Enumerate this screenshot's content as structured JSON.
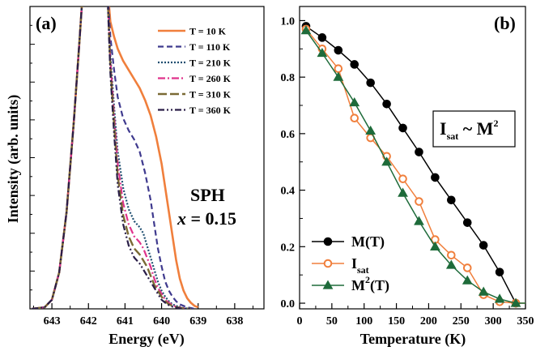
{
  "chart_data": [
    {
      "type": "line",
      "panel_label": "(a)",
      "xlabel": "Energy (eV)",
      "ylabel": "Intensity (arb. units)",
      "xlim": [
        643.6,
        637.2
      ],
      "x_reversed": true,
      "x_ticks": [
        643,
        642,
        641,
        640,
        639,
        638
      ],
      "y_tick_labels": false,
      "annotation_line1": "SPH",
      "annotation_x": "x",
      "annotation_rest": " = 0.15",
      "series": [
        {
          "name": "T = 10 K",
          "color": "#F07F3C",
          "dash": "",
          "width": 2.6,
          "x": [
            643.55,
            643.2,
            643.0,
            642.8,
            642.6,
            642.4,
            642.25,
            642.15,
            642.05,
            641.5,
            641.45,
            641.4,
            641.3,
            641.2,
            641.05,
            640.9,
            640.75,
            640.6,
            640.45,
            640.3,
            640.15,
            640.0,
            639.9,
            639.8,
            639.7,
            639.6,
            639.5,
            639.4,
            639.3,
            639.2,
            639.1,
            639.0
          ],
          "y": [
            0.0,
            0.005,
            0.03,
            0.12,
            0.32,
            0.62,
            0.88,
            1.06,
            1.12,
            1.12,
            1.02,
            0.95,
            0.9,
            0.86,
            0.82,
            0.79,
            0.76,
            0.73,
            0.69,
            0.64,
            0.57,
            0.48,
            0.4,
            0.32,
            0.24,
            0.16,
            0.1,
            0.06,
            0.035,
            0.02,
            0.01,
            0.005
          ]
        },
        {
          "name": "T = 110 K",
          "color": "#3F3A8E",
          "dash": "7,4",
          "width": 2.2,
          "x": [
            643.55,
            643.2,
            643.0,
            642.8,
            642.6,
            642.4,
            642.25,
            642.15,
            642.05,
            641.5,
            641.45,
            641.4,
            641.3,
            641.2,
            641.05,
            640.9,
            640.75,
            640.6,
            640.45,
            640.3,
            640.2,
            640.1,
            640.0,
            639.9,
            639.8,
            639.7,
            639.6,
            639.5,
            639.4,
            639.3,
            639.2,
            639.1
          ],
          "y": [
            0.0,
            0.005,
            0.03,
            0.12,
            0.32,
            0.62,
            0.88,
            1.06,
            1.12,
            1.12,
            1.0,
            0.9,
            0.79,
            0.7,
            0.63,
            0.59,
            0.56,
            0.52,
            0.45,
            0.36,
            0.28,
            0.2,
            0.14,
            0.09,
            0.06,
            0.04,
            0.025,
            0.015,
            0.01,
            0.005,
            0.003,
            0.0
          ]
        },
        {
          "name": "T = 210 K",
          "color": "#1E4E70",
          "dash": "2,2",
          "width": 2.2,
          "x": [
            643.55,
            643.2,
            643.0,
            642.8,
            642.6,
            642.4,
            642.25,
            642.15,
            642.05,
            641.5,
            641.45,
            641.4,
            641.3,
            641.2,
            641.05,
            640.9,
            640.75,
            640.6,
            640.5,
            640.4,
            640.3,
            640.2,
            640.1,
            640.0,
            639.9,
            639.8,
            639.7,
            639.6,
            639.5,
            639.4,
            639.3,
            639.2
          ],
          "y": [
            0.0,
            0.005,
            0.03,
            0.12,
            0.32,
            0.62,
            0.88,
            1.06,
            1.12,
            1.12,
            0.97,
            0.84,
            0.67,
            0.52,
            0.4,
            0.33,
            0.29,
            0.27,
            0.25,
            0.21,
            0.17,
            0.13,
            0.09,
            0.06,
            0.04,
            0.025,
            0.015,
            0.01,
            0.005,
            0.003,
            0.001,
            0.0
          ]
        },
        {
          "name": "T = 260 K",
          "color": "#E0338C",
          "dash": "9,3,2,3",
          "width": 2.2,
          "x": [
            643.55,
            643.2,
            643.0,
            642.8,
            642.6,
            642.4,
            642.25,
            642.15,
            642.05,
            641.5,
            641.45,
            641.4,
            641.3,
            641.2,
            641.05,
            640.9,
            640.75,
            640.6,
            640.5,
            640.4,
            640.3,
            640.2,
            640.1,
            640.0,
            639.9,
            639.8,
            639.7,
            639.6,
            639.5,
            639.4,
            639.3,
            639.2
          ],
          "y": [
            0.0,
            0.005,
            0.03,
            0.12,
            0.32,
            0.62,
            0.88,
            1.06,
            1.12,
            1.12,
            0.96,
            0.82,
            0.64,
            0.48,
            0.35,
            0.28,
            0.24,
            0.22,
            0.2,
            0.17,
            0.14,
            0.1,
            0.07,
            0.05,
            0.03,
            0.02,
            0.012,
            0.007,
            0.004,
            0.002,
            0.001,
            0.0
          ]
        },
        {
          "name": "T = 310 K",
          "color": "#7A6A35",
          "dash": "11,4",
          "width": 2.4,
          "x": [
            643.55,
            643.2,
            643.0,
            642.8,
            642.6,
            642.4,
            642.25,
            642.15,
            642.05,
            641.5,
            641.45,
            641.4,
            641.3,
            641.2,
            641.05,
            640.9,
            640.75,
            640.6,
            640.5,
            640.4,
            640.3,
            640.2,
            640.1,
            640.0,
            639.9,
            639.8,
            639.7,
            639.6,
            639.5,
            639.4,
            639.3,
            639.2
          ],
          "y": [
            0.0,
            0.005,
            0.03,
            0.12,
            0.32,
            0.62,
            0.88,
            1.06,
            1.12,
            1.12,
            0.95,
            0.8,
            0.61,
            0.44,
            0.31,
            0.24,
            0.2,
            0.18,
            0.16,
            0.14,
            0.11,
            0.08,
            0.06,
            0.04,
            0.025,
            0.015,
            0.01,
            0.006,
            0.003,
            0.002,
            0.001,
            0.0
          ]
        },
        {
          "name": "T = 360 K",
          "color": "#2A1E48",
          "dash": "8,3,2,3,2,3",
          "width": 2.2,
          "x": [
            643.55,
            643.2,
            643.0,
            642.8,
            642.6,
            642.4,
            642.25,
            642.15,
            642.05,
            641.5,
            641.45,
            641.4,
            641.3,
            641.2,
            641.05,
            640.9,
            640.75,
            640.6,
            640.5,
            640.4,
            640.3,
            640.2,
            640.1,
            640.0,
            639.9,
            639.8,
            639.7,
            639.6,
            639.5,
            639.4,
            639.3,
            639.2
          ],
          "y": [
            0.0,
            0.005,
            0.03,
            0.12,
            0.32,
            0.62,
            0.88,
            1.06,
            1.12,
            1.12,
            0.94,
            0.78,
            0.58,
            0.41,
            0.28,
            0.21,
            0.17,
            0.15,
            0.13,
            0.11,
            0.09,
            0.07,
            0.05,
            0.03,
            0.02,
            0.012,
            0.007,
            0.004,
            0.002,
            0.001,
            0.0,
            0.0
          ]
        }
      ]
    },
    {
      "type": "line",
      "panel_label": "(b)",
      "xlabel": "Temperature (K)",
      "ylabel": "",
      "xlim": [
        0,
        350
      ],
      "ylim": [
        -0.02,
        1.05
      ],
      "x_ticks": [
        0,
        50,
        100,
        150,
        200,
        250,
        300,
        350
      ],
      "y_ticks": [
        0.0,
        0.2,
        0.4,
        0.6,
        0.8,
        1.0
      ],
      "y_tick_labels_text": [
        "0.0",
        "0.2",
        "0.4",
        "0.6",
        "0.8",
        "1.0"
      ],
      "annotation": {
        "base": "I",
        "sub": "sat",
        "mid": " ~ M",
        "sup": "2"
      },
      "series": [
        {
          "name": "M(T)",
          "legend_base": "M(T)",
          "legend_sub": "",
          "legend_sup": "",
          "legend_tail": "",
          "color": "#000000",
          "marker": "circle-filled",
          "x": [
            10,
            35,
            60,
            85,
            110,
            135,
            160,
            185,
            210,
            235,
            260,
            285,
            310,
            335
          ],
          "y": [
            0.98,
            0.94,
            0.895,
            0.845,
            0.78,
            0.705,
            0.62,
            0.535,
            0.445,
            0.365,
            0.285,
            0.205,
            0.11,
            0.0
          ]
        },
        {
          "name": "Isat",
          "legend_base": "I",
          "legend_sub": "sat",
          "legend_sup": "",
          "legend_tail": "",
          "color": "#F07F3C",
          "marker": "circle-open",
          "x": [
            10,
            35,
            60,
            85,
            110,
            135,
            160,
            185,
            210,
            235,
            260,
            285,
            310,
            335,
            350
          ],
          "y": [
            0.97,
            0.9,
            0.83,
            0.655,
            0.585,
            0.52,
            0.44,
            0.36,
            0.225,
            0.17,
            0.125,
            0.03,
            0.005,
            0.0,
            0.0
          ]
        },
        {
          "name": "M2(T)",
          "legend_base": "M",
          "legend_sub": "",
          "legend_sup": "2",
          "legend_tail": "(T)",
          "color": "#1E6B3A",
          "marker": "triangle-filled",
          "x": [
            10,
            35,
            60,
            85,
            110,
            135,
            160,
            185,
            210,
            235,
            260,
            285,
            310,
            335,
            350
          ],
          "y": [
            0.965,
            0.885,
            0.8,
            0.71,
            0.61,
            0.5,
            0.39,
            0.29,
            0.2,
            0.135,
            0.08,
            0.04,
            0.015,
            0.0,
            0.0
          ]
        }
      ]
    }
  ]
}
